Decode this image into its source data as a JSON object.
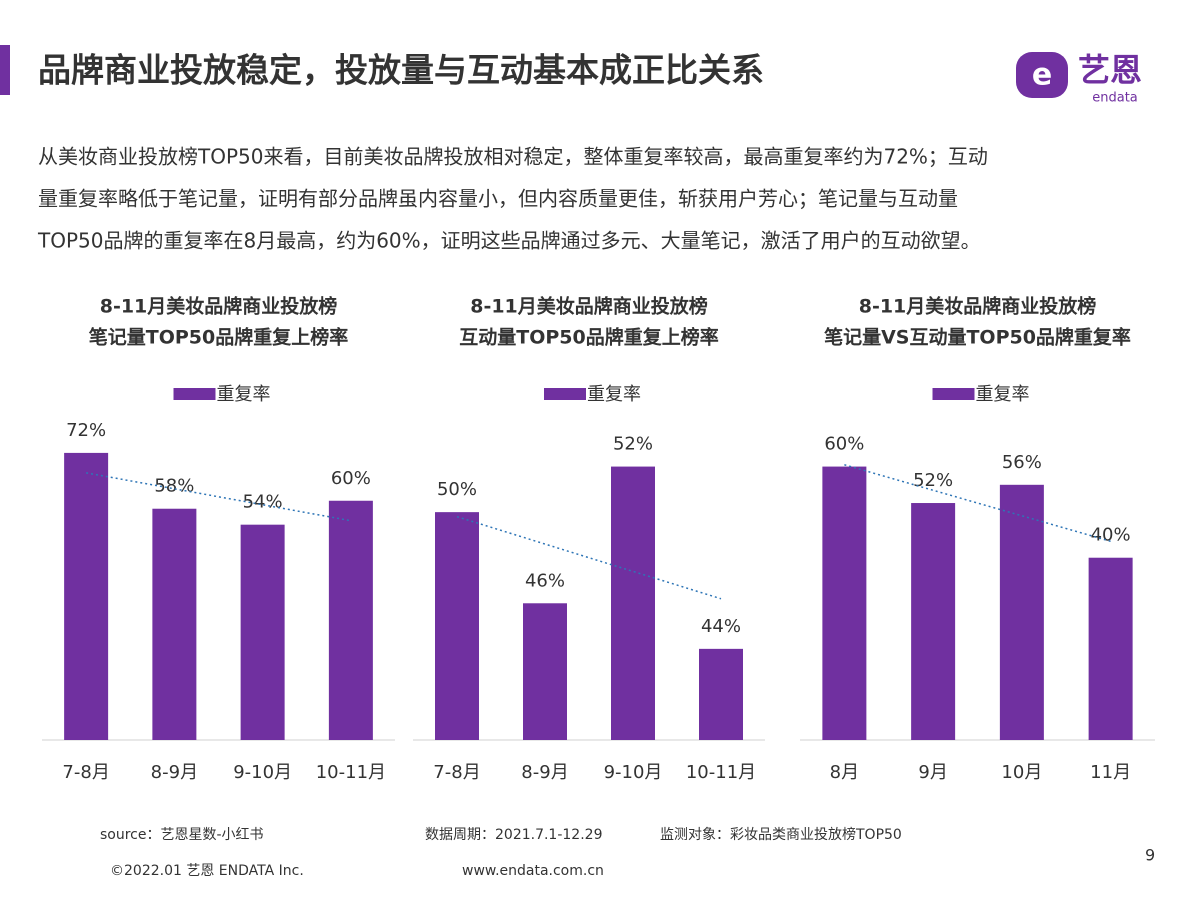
{
  "header": {
    "title": "品牌商业投放稳定，投放量与互动基本成正比关系"
  },
  "logo": {
    "name": "艺恩",
    "sub": "endata"
  },
  "paragraph": [
    "从美妆商业投放榜TOP50来看，目前美妆品牌投放相对稳定，整体重复率较高，最高重复率约为72%；互动",
    "量重复率略低于笔记量，证明有部分品牌虽内容量小，但内容质量更佳，斩获用户芳心；笔记量与互动量",
    "TOP50品牌的重复率在8月最高，约为60%，证明这些品牌通过多元、大量笔记，激活了用户的互动欲望。"
  ],
  "chart_data": [
    {
      "type": "bar",
      "title": "8-11月美妆品牌商业投放榜",
      "subtitle": "笔记量TOP50品牌重复上榜率",
      "categories": [
        "7-8月",
        "8-9月",
        "9-10月",
        "10-11月"
      ],
      "series": [
        {
          "name": "重复率",
          "color": "#7030a0",
          "values": [
            72,
            58,
            54,
            60
          ],
          "value_labels": [
            "72%",
            "58%",
            "54%",
            "60%"
          ]
        }
      ],
      "ylim": [
        0,
        80
      ],
      "trendline": true,
      "trendline_color": "#2e75b6"
    },
    {
      "type": "bar",
      "title": "8-11月美妆品牌商业投放榜",
      "subtitle": "互动量TOP50品牌重复上榜率",
      "categories": [
        "7-8月",
        "8-9月",
        "9-10月",
        "10-11月"
      ],
      "series": [
        {
          "name": "重复率",
          "color": "#7030a0",
          "values": [
            50,
            46,
            52,
            44
          ],
          "value_labels": [
            "50%",
            "46%",
            "52%",
            "44%"
          ]
        }
      ],
      "ylim": [
        40,
        54
      ],
      "trendline": true,
      "trendline_color": "#2e75b6"
    },
    {
      "type": "bar",
      "title": "8-11月美妆品牌商业投放榜",
      "subtitle": "笔记量VS互动量TOP50品牌重复率",
      "categories": [
        "8月",
        "9月",
        "10月",
        "11月"
      ],
      "series": [
        {
          "name": "重复率",
          "color": "#7030a0",
          "values": [
            60,
            52,
            56,
            40
          ],
          "value_labels": [
            "60%",
            "52%",
            "56%",
            "40%"
          ]
        }
      ],
      "ylim": [
        0,
        70
      ],
      "trendline": true,
      "trendline_color": "#2e75b6"
    }
  ],
  "footer": {
    "source": "source：艺恩星数-小红书",
    "period": "数据周期：2021.7.1-12.29",
    "target": "监测对象：彩妆品类商业投放榜TOP50",
    "copyright": "©2022.01 艺恩 ENDATA Inc.",
    "website": "www.endata.com.cn",
    "page": "9"
  }
}
